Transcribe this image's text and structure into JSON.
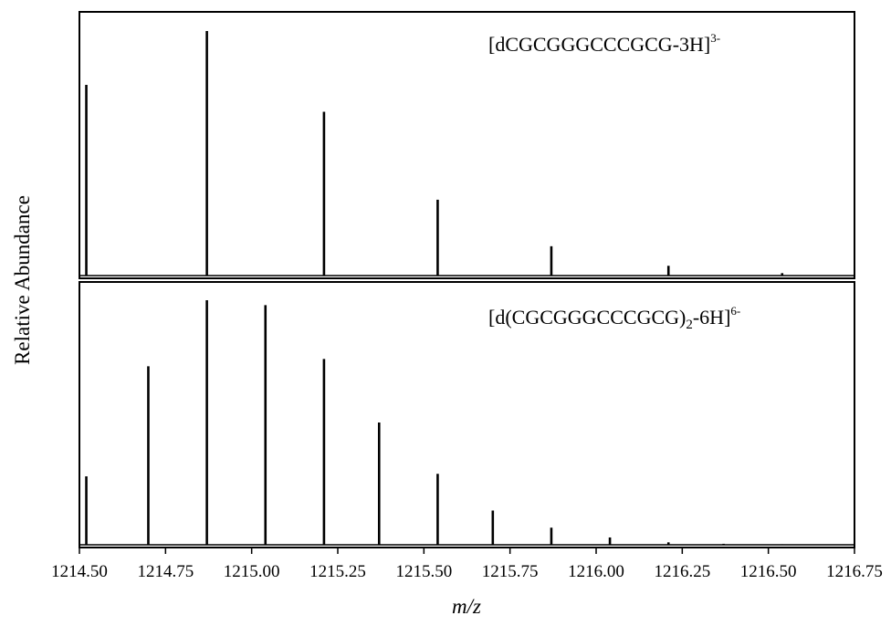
{
  "chart_data": [
    {
      "type": "bar",
      "panel": "top",
      "label_main": "[dCGCGGGCCCGCG-3H]",
      "label_sup": "3-",
      "x": [
        1214.52,
        1214.87,
        1215.21,
        1215.54,
        1215.87,
        1216.21,
        1216.54
      ],
      "values": [
        78,
        100,
        67,
        31,
        12,
        4,
        1
      ]
    },
    {
      "type": "bar",
      "panel": "bottom",
      "label_pre": "[d(CGCGGGCCCGCG)",
      "label_sub": "2",
      "label_post": "-6H]",
      "label_sup": "6-",
      "x": [
        1214.52,
        1214.7,
        1214.87,
        1215.04,
        1215.21,
        1215.37,
        1215.54,
        1215.7,
        1215.87,
        1216.04,
        1216.21,
        1216.37,
        1216.54
      ],
      "values": [
        28,
        73,
        100,
        98,
        76,
        50,
        29,
        14,
        7,
        3,
        1,
        0.4,
        0.2
      ]
    }
  ],
  "axes": {
    "xlabel": "m/z",
    "ylabel": "Relative Abundance",
    "xlim": [
      1214.5,
      1216.75
    ],
    "xticks": [
      "1214.50",
      "1214.75",
      "1215.00",
      "1215.25",
      "1215.50",
      "1215.75",
      "1216.00",
      "1216.25",
      "1216.50",
      "1216.75"
    ],
    "xtick_values": [
      1214.5,
      1214.75,
      1215.0,
      1215.25,
      1215.5,
      1215.75,
      1216.0,
      1216.25,
      1216.5,
      1216.75
    ]
  }
}
